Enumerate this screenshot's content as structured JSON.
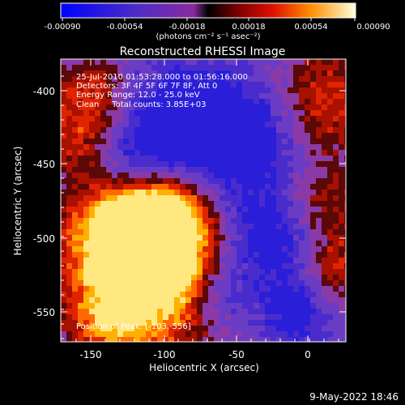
{
  "colorbar": {
    "tick_labels": [
      "-0.00090",
      "-0.00054",
      "-0.00018",
      "0.00018",
      "0.00054",
      "0.00090"
    ],
    "unit_label": "(photons cm⁻² s⁻¹ asec⁻²)"
  },
  "title": "Reconstructed RHESSI Image",
  "info": {
    "time": "25-Jul-2010 01:53:28.000 to 01:56:16.000",
    "detectors": "Detectors: 3F 4F 5F 6F 7F 8F, Att 0",
    "energy": "Energy Range: 12.0 - 25.0 keV",
    "clean": "Clean     Total counts: 3.85E+03"
  },
  "position_label": "Position of Peak: [-103,-556]",
  "axes": {
    "xlabel": "Heliocentric X (arcsec)",
    "ylabel": "Heliocentric Y (arcsec)",
    "x_ticks": [
      "-150",
      "-100",
      "-50",
      "0"
    ],
    "y_ticks": [
      "-400",
      "-450",
      "-500",
      "-550"
    ]
  },
  "footer_date": "9-May-2022 18:46"
}
